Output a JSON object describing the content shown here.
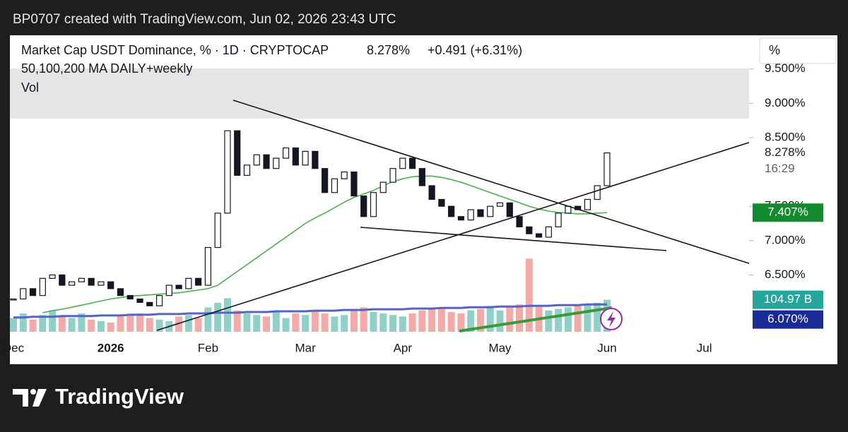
{
  "header": {
    "credit": "BP0707 created with TradingView.com, Jun 02, 2026 23:43 UTC"
  },
  "footer": {
    "brand": "TradingView"
  },
  "chart_data": {
    "type": "candlestick",
    "title": "Market Cap USDT Dominance, % · 1D · CRYPTOCAP",
    "price": "8.278%",
    "change": "+0.491 (+6.31%)",
    "subtitle": "50,100,200 MA DAILY+weekly",
    "volume_title": "Vol",
    "scale_label": "%",
    "countdown": "16:29",
    "categories": [
      "Dec",
      null,
      null,
      null,
      null,
      null,
      null,
      null,
      null,
      null,
      "2026",
      null,
      null,
      null,
      null,
      null,
      null,
      null,
      null,
      null,
      "Feb",
      null,
      null,
      null,
      null,
      null,
      null,
      null,
      null,
      null,
      "Mar",
      null,
      null,
      null,
      null,
      null,
      null,
      null,
      null,
      null,
      "Apr",
      null,
      null,
      null,
      null,
      null,
      null,
      null,
      null,
      null,
      "May",
      null,
      null,
      null,
      null,
      null,
      null,
      null,
      null,
      null,
      null,
      "Jun",
      null,
      null,
      null,
      null,
      null,
      null,
      null,
      null,
      null,
      "Jul",
      null,
      null,
      null,
      null
    ],
    "series": [
      {
        "color": "#131722",
        "last_label": "8.278%",
        "values": [
          6.15,
          6.3,
          6.2,
          6.45,
          6.5,
          6.35,
          6.4,
          6.45,
          6.35,
          6.4,
          6.3,
          6.2,
          6.15,
          6.1,
          6.05,
          6.2,
          6.35,
          6.3,
          6.45,
          6.35,
          6.9,
          7.4,
          8.6,
          7.95,
          8.1,
          8.25,
          8.05,
          8.2,
          8.35,
          8.1,
          8.3,
          8.05,
          7.7,
          7.9,
          8.0,
          7.65,
          7.35,
          7.7,
          7.85,
          8.05,
          8.2,
          8.05,
          7.8,
          7.6,
          7.5,
          7.35,
          7.3,
          7.45,
          7.35,
          7.5,
          7.55,
          7.35,
          7.2,
          7.1,
          7.05,
          7.2,
          7.4,
          7.5,
          7.45,
          7.6,
          7.8,
          8.278,
          null,
          null,
          null,
          null,
          null,
          null,
          null,
          null,
          null,
          null,
          null,
          null,
          null,
          null
        ]
      },
      {
        "color": "#4caf50",
        "last_label": "7.407%",
        "label_color": "#128a2e",
        "values": [
          null,
          null,
          null,
          5.95,
          5.98,
          6.0,
          6.03,
          6.06,
          6.09,
          6.12,
          6.15,
          6.17,
          6.19,
          6.2,
          6.21,
          6.22,
          6.23,
          6.24,
          6.26,
          6.28,
          6.3,
          6.35,
          6.45,
          6.55,
          6.65,
          6.75,
          6.85,
          6.95,
          7.05,
          7.15,
          7.25,
          7.33,
          7.4,
          7.48,
          7.56,
          7.63,
          7.68,
          7.73,
          7.8,
          7.86,
          7.9,
          7.93,
          7.94,
          7.94,
          7.92,
          7.89,
          7.85,
          7.8,
          7.75,
          7.7,
          7.65,
          7.6,
          7.55,
          7.5,
          7.46,
          7.43,
          7.41,
          7.4,
          7.39,
          7.39,
          7.4,
          7.407,
          null,
          null,
          null,
          null,
          null,
          null,
          null,
          null,
          null,
          null,
          null,
          null,
          null,
          null
        ]
      },
      {
        "color": "#5565c0",
        "last_label": "6.070%",
        "label_color": "#1a2a96",
        "values": [
          5.88,
          5.88,
          5.89,
          5.89,
          5.89,
          5.9,
          5.9,
          5.9,
          5.9,
          5.91,
          5.91,
          5.91,
          5.92,
          5.92,
          5.92,
          5.93,
          5.93,
          5.93,
          5.94,
          5.94,
          5.94,
          5.95,
          5.95,
          5.95,
          5.96,
          5.96,
          5.96,
          5.97,
          5.97,
          5.97,
          5.97,
          5.98,
          5.98,
          5.98,
          5.99,
          5.99,
          5.99,
          6.0,
          6.0,
          6.0,
          6.0,
          6.01,
          6.01,
          6.01,
          6.02,
          6.02,
          6.02,
          6.03,
          6.03,
          6.03,
          6.04,
          6.04,
          6.04,
          6.05,
          6.05,
          6.05,
          6.06,
          6.06,
          6.06,
          6.07,
          6.07,
          6.07,
          null,
          null,
          null,
          null,
          null,
          null,
          null,
          null,
          null,
          null,
          null,
          null,
          null,
          null
        ]
      }
    ],
    "volume": {
      "up_color": "#8fd0c8",
      "down_color": "#f5aaa8",
      "label_color": "#26a69a",
      "last_label": "104.97 B",
      "ylim": [
        0,
        250
      ],
      "values": [
        45,
        60,
        40,
        55,
        70,
        50,
        45,
        60,
        40,
        35,
        30,
        50,
        55,
        60,
        45,
        40,
        35,
        50,
        55,
        45,
        80,
        95,
        110,
        70,
        60,
        55,
        50,
        65,
        45,
        60,
        55,
        70,
        60,
        50,
        55,
        75,
        80,
        65,
        60,
        55,
        50,
        60,
        70,
        75,
        80,
        65,
        60,
        70,
        75,
        85,
        70,
        80,
        90,
        240,
        85,
        70,
        75,
        80,
        85,
        90,
        95,
        104.97,
        null,
        null,
        null,
        null,
        null,
        null,
        null,
        null,
        null,
        null,
        null,
        null,
        null,
        null
      ]
    },
    "ylim": [
      5.59,
      9.99
    ],
    "yticks": [
      {
        "value": 9.5,
        "label": "9.500%"
      },
      {
        "value": 9.0,
        "label": "9.000%"
      },
      {
        "value": 8.5,
        "label": "8.500%"
      },
      {
        "value": 7.5,
        "label": "7.500%"
      },
      {
        "value": 7.0,
        "label": "7.000%"
      },
      {
        "value": 6.5,
        "label": "6.500%"
      }
    ],
    "grid": false
  }
}
